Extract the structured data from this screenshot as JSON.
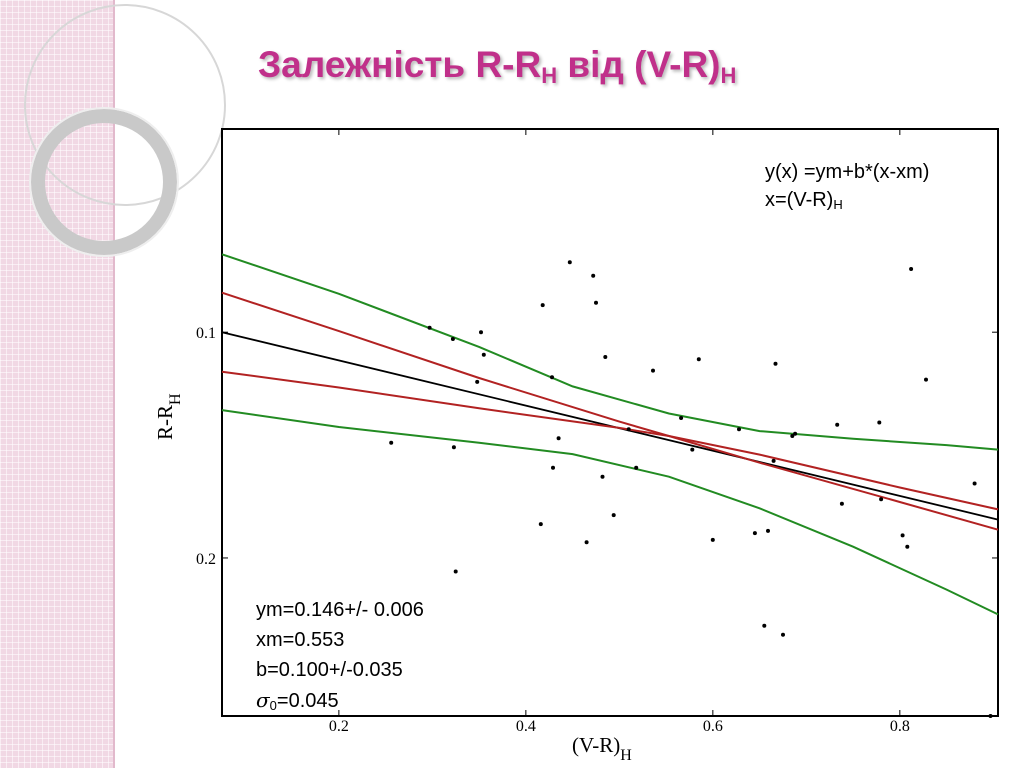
{
  "title": {
    "main": "Залежність R-R",
    "sub1": "H",
    "mid": " від (V-R)",
    "sub2": "H"
  },
  "chart_data": {
    "type": "scatter",
    "xlim": [
      0.075,
      0.905
    ],
    "ylim": [
      0.27,
      0.01
    ],
    "y_inverted": true,
    "xticks": [
      0.2,
      0.4,
      0.6,
      0.8
    ],
    "xtick_labels": [
      "0.2",
      "0.4",
      "0.6",
      "0.8"
    ],
    "yticks": [
      0.1,
      0.2
    ],
    "ytick_labels": [
      "0.1",
      "0.2"
    ],
    "xlabel": {
      "main": "(V-R)",
      "sub": "H"
    },
    "ylabel": {
      "main": "R-R",
      "sub": "H"
    },
    "points": [
      [
        0.256,
        0.149
      ],
      [
        0.297,
        0.098
      ],
      [
        0.322,
        0.103
      ],
      [
        0.323,
        0.151
      ],
      [
        0.325,
        0.206
      ],
      [
        0.348,
        0.122
      ],
      [
        0.352,
        0.1
      ],
      [
        0.355,
        0.11
      ],
      [
        0.416,
        0.185
      ],
      [
        0.418,
        0.088
      ],
      [
        0.428,
        0.12
      ],
      [
        0.429,
        0.16
      ],
      [
        0.435,
        0.147
      ],
      [
        0.447,
        0.069
      ],
      [
        0.465,
        0.193
      ],
      [
        0.472,
        0.075
      ],
      [
        0.475,
        0.087
      ],
      [
        0.482,
        0.164
      ],
      [
        0.485,
        0.111
      ],
      [
        0.494,
        0.181
      ],
      [
        0.51,
        0.143
      ],
      [
        0.518,
        0.16
      ],
      [
        0.536,
        0.117
      ],
      [
        0.566,
        0.138
      ],
      [
        0.578,
        0.152
      ],
      [
        0.585,
        0.112
      ],
      [
        0.6,
        0.192
      ],
      [
        0.628,
        0.143
      ],
      [
        0.645,
        0.189
      ],
      [
        0.655,
        0.23
      ],
      [
        0.659,
        0.188
      ],
      [
        0.665,
        0.157
      ],
      [
        0.667,
        0.114
      ],
      [
        0.675,
        0.234
      ],
      [
        0.685,
        0.146
      ],
      [
        0.688,
        0.145
      ],
      [
        0.733,
        0.141
      ],
      [
        0.738,
        0.176
      ],
      [
        0.778,
        0.14
      ],
      [
        0.78,
        0.174
      ],
      [
        0.803,
        0.19
      ],
      [
        0.808,
        0.195
      ],
      [
        0.812,
        0.072
      ],
      [
        0.828,
        0.121
      ],
      [
        0.88,
        0.167
      ],
      [
        0.897,
        0.27
      ]
    ],
    "series": [
      {
        "kind": "fit",
        "color": "#000000",
        "x": [
          0.075,
          0.905
        ],
        "y": [
          0.1,
          0.183
        ]
      },
      {
        "kind": "inner-band",
        "color": "#b22222",
        "x": [
          0.075,
          0.2,
          0.35,
          0.5,
          0.553,
          0.65,
          0.8,
          0.905
        ],
        "y": [
          0.0825,
          0.0995,
          0.1203,
          0.1396,
          0.146,
          0.1578,
          0.1752,
          0.1875
        ]
      },
      {
        "kind": "inner-band",
        "color": "#b22222",
        "x": [
          0.075,
          0.2,
          0.35,
          0.5,
          0.553,
          0.65,
          0.8,
          0.905
        ],
        "y": [
          0.1175,
          0.1245,
          0.1337,
          0.1424,
          0.146,
          0.1542,
          0.1688,
          0.1785
        ]
      },
      {
        "kind": "outer-band",
        "color": "#228b22",
        "x": [
          0.075,
          0.2,
          0.35,
          0.45,
          0.553,
          0.65,
          0.75,
          0.85,
          0.905
        ],
        "y": [
          0.0655,
          0.083,
          0.1065,
          0.124,
          0.136,
          0.1438,
          0.1472,
          0.15,
          0.152
        ]
      },
      {
        "kind": "outer-band",
        "color": "#228b22",
        "x": [
          0.075,
          0.2,
          0.35,
          0.45,
          0.553,
          0.65,
          0.75,
          0.85,
          0.905
        ],
        "y": [
          0.1345,
          0.142,
          0.149,
          0.154,
          0.164,
          0.178,
          0.195,
          0.214,
          0.225
        ]
      }
    ]
  },
  "annotations": {
    "formula": {
      "line1": "y(x) =ym+b*(x-xm)",
      "line2_main": "x=(V-R)",
      "line2_sub": "H"
    },
    "stats": {
      "ym": "ym=0.146+/- 0.006",
      "xm": "xm=0.553",
      "b": "b=0.100+/-0.035",
      "sigma_symbol": "σ",
      "sigma_sub": "0",
      "sigma_value": "=0.045"
    }
  }
}
